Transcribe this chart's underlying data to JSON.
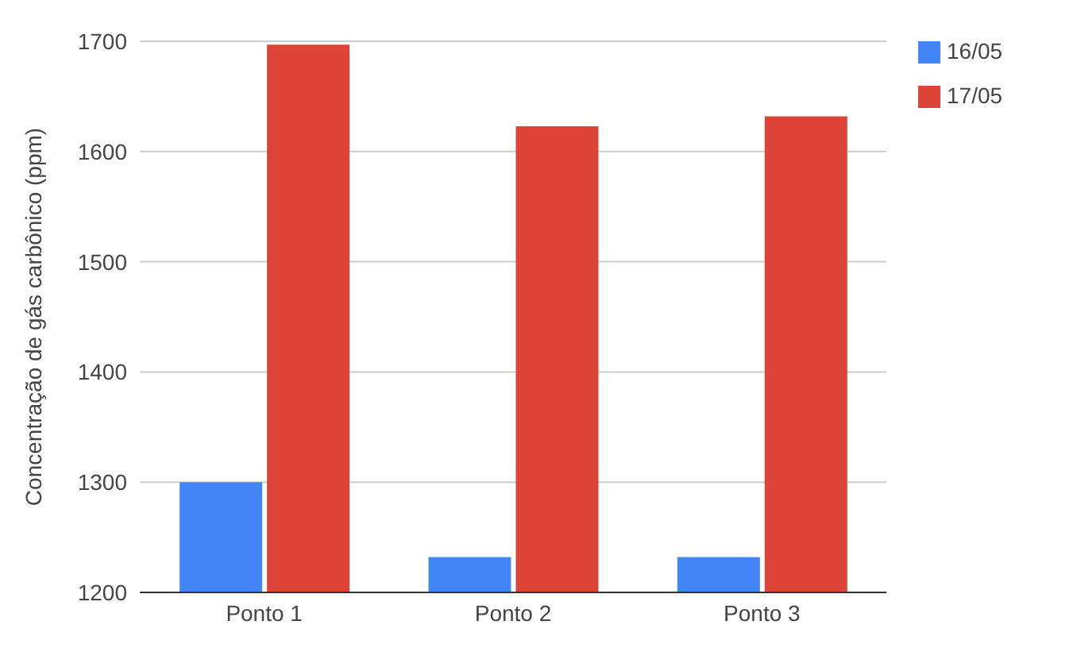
{
  "chart_data": {
    "type": "bar",
    "ylabel": "Concentração de gás carbônico (ppm)",
    "categories": [
      "Ponto 1",
      "Ponto 2",
      "Ponto 3"
    ],
    "series": [
      {
        "name": "16/05",
        "color": "#4285f4",
        "values": [
          1300,
          1232,
          1232
        ]
      },
      {
        "name": "17/05",
        "color": "#db4437",
        "values": [
          1697,
          1623,
          1632
        ]
      }
    ],
    "ylim": [
      1200,
      1700
    ],
    "yticks": [
      1200,
      1300,
      1400,
      1500,
      1600,
      1700
    ],
    "grid": "y",
    "legend": "top right"
  }
}
